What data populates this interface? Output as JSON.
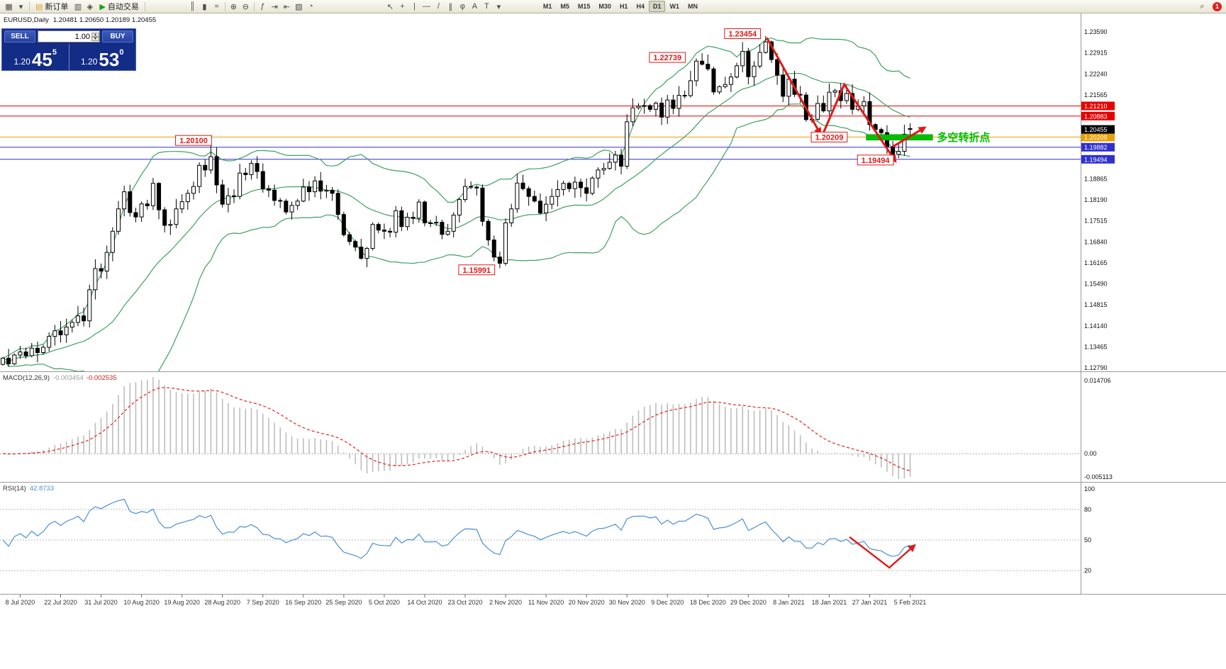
{
  "window": {
    "badge_count": "1"
  },
  "toolbar": {
    "search_glyph": "⌕",
    "items": [
      {
        "name": "new-chart-icon",
        "glyph": "▦"
      },
      {
        "name": "new-chart-dropdown-icon",
        "glyph": "▾"
      },
      {
        "kind": "sep"
      },
      {
        "name": "new-order-button",
        "label": "新订单",
        "glyph": "▤",
        "glyph_color": "#d8a62a"
      },
      {
        "name": "market-watch-icon",
        "glyph": "▥"
      },
      {
        "name": "navigator-icon",
        "glyph": "◈"
      },
      {
        "name": "autotrading-button",
        "label": "自动交易",
        "glyph": "▶",
        "glyph_color": "#17a317"
      },
      {
        "kind": "sep"
      },
      {
        "name": "bar-chart-icon",
        "glyph": "║"
      },
      {
        "name": "candlestick-icon",
        "glyph": "▮"
      },
      {
        "name": "line-chart-icon",
        "glyph": "≈"
      },
      {
        "kind": "sep"
      },
      {
        "name": "zoom-in-icon",
        "glyph": "⊕"
      },
      {
        "name": "zoom-out-icon",
        "glyph": "⊖"
      },
      {
        "kind": "sep"
      },
      {
        "name": "indicators-icon",
        "glyph": "ƒ"
      },
      {
        "name": "auto-scroll-icon",
        "glyph": "⇥"
      },
      {
        "name": "chart-shift-icon",
        "glyph": "⇤"
      },
      {
        "name": "templates-icon",
        "glyph": "▧"
      },
      {
        "name": "clock-icon",
        "glyph": "◔"
      },
      {
        "name": "cursor-icon",
        "glyph": "↖"
      },
      {
        "name": "crosshair-icon",
        "glyph": "+"
      },
      {
        "name": "vertical-line-icon",
        "glyph": "|"
      },
      {
        "name": "horizontal-line-icon",
        "glyph": "—"
      },
      {
        "name": "trendline-icon",
        "glyph": "/"
      },
      {
        "name": "channel-icon",
        "glyph": "∥"
      },
      {
        "name": "fibonacci-icon",
        "glyph": "φ"
      },
      {
        "name": "text-icon",
        "glyph": "A"
      },
      {
        "name": "label-icon",
        "glyph": "T"
      },
      {
        "name": "shapes-dropdown-icon",
        "glyph": "▾"
      }
    ],
    "timeframes": [
      {
        "label": "M1"
      },
      {
        "label": "M5"
      },
      {
        "label": "M15"
      },
      {
        "label": "M30"
      },
      {
        "label": "H1"
      },
      {
        "label": "H4"
      },
      {
        "label": "D1",
        "active": true
      },
      {
        "label": "W1"
      },
      {
        "label": "MN"
      }
    ]
  },
  "quote_panel": {
    "sell_label": "SELL",
    "buy_label": "BUY",
    "volume": "1.00",
    "bid": {
      "prefix": "1.20",
      "big": "45",
      "sup": "5"
    },
    "ask": {
      "prefix": "1.20",
      "big": "53",
      "sup": "0"
    }
  },
  "chart_data": {
    "type": "candlestick",
    "symbol_title": "EURUSD,Daily",
    "ohlc_text": "1.20481 1.20650 1.20189 1.20455",
    "price_axis": {
      "top_price": 1.2359,
      "bottom_price": 1.1279,
      "step": 0.00675,
      "count": 17,
      "visible_labels": [
        "1.23590",
        "1.22915",
        "1.22240",
        "1.21565",
        "1.18865",
        "1.18190",
        "1.17515",
        "1.16840",
        "1.16165",
        "1.15490",
        "1.14815",
        "1.14140",
        "1.13465",
        "1.12790"
      ]
    },
    "closes": [
      1.131,
      1.1292,
      1.132,
      1.133,
      1.1318,
      1.1342,
      1.1328,
      1.1345,
      1.138,
      1.1398,
      1.1385,
      1.141,
      1.1425,
      1.1446,
      1.143,
      1.153,
      1.1598,
      1.159,
      1.165,
      1.1718,
      1.179,
      1.1845,
      1.1778,
      1.1764,
      1.1806,
      1.18,
      1.1872,
      1.1787,
      1.1737,
      1.174,
      1.179,
      1.1813,
      1.184,
      1.1862,
      1.193,
      1.1915,
      1.1958,
      1.1867,
      1.1805,
      1.1832,
      1.183,
      1.1905,
      1.19,
      1.1936,
      1.191,
      1.1855,
      1.185,
      1.1817,
      1.1815,
      1.178,
      1.1801,
      1.1815,
      1.186,
      1.1845,
      1.188,
      1.1847,
      1.185,
      1.184,
      1.1772,
      1.1707,
      1.1685,
      1.1667,
      1.1631,
      1.1663,
      1.174,
      1.1722,
      1.1718,
      1.1715,
      1.1784,
      1.1733,
      1.1763,
      1.176,
      1.1812,
      1.1745,
      1.1745,
      1.1747,
      1.1708,
      1.1718,
      1.177,
      1.182,
      1.1862,
      1.186,
      1.1857,
      1.175,
      1.169,
      1.1635,
      1.1615,
      1.1745,
      1.179,
      1.1873,
      1.1855,
      1.183,
      1.1815,
      1.1777,
      1.1805,
      1.183,
      1.1852,
      1.1872,
      1.1855,
      1.1876,
      1.1858,
      1.184,
      1.1889,
      1.1915,
      1.192,
      1.194,
      1.1963,
      1.1927,
      1.207,
      1.2115,
      1.212,
      1.2122,
      1.211,
      1.213,
      1.2085,
      1.214,
      1.2113,
      1.2155,
      1.2154,
      1.2202,
      1.2265,
      1.2255,
      1.224,
      1.2166,
      1.2183,
      1.219,
      1.2214,
      1.225,
      1.2296,
      1.2215,
      1.2249,
      1.2293,
      1.2327,
      1.227,
      1.222,
      1.2152,
      1.2207,
      1.2158,
      1.2156,
      1.2077,
      1.2078,
      1.2129,
      1.2105,
      1.2165,
      1.217,
      1.2138,
      1.2161,
      1.211,
      1.2121,
      1.2135,
      1.2061,
      1.2045,
      1.2035,
      1.199,
      1.1965,
      1.1975,
      1.203,
      1.20455
    ],
    "candle_overrides": [
      {
        "i": 36,
        "high": 1.201
      },
      {
        "i": 86,
        "low": 1.15991
      },
      {
        "i": 120,
        "high": 1.22739
      },
      {
        "i": 132,
        "high": 1.23454
      },
      {
        "i": 154,
        "low": 1.19494
      },
      {
        "i": 157,
        "open": 1.20481,
        "high": 1.2065,
        "low": 1.20189,
        "close": 1.20455
      }
    ],
    "levels": [
      {
        "price": 1.2121,
        "label": "1.21210",
        "color": "#e80000"
      },
      {
        "price": 1.20883,
        "label": "1.20883",
        "color": "#e80000"
      },
      {
        "price": 1.20209,
        "label": "1.20209",
        "color": "#e8a000"
      },
      {
        "price": 1.19882,
        "label": "1.19882",
        "color": "#3030d0"
      },
      {
        "price": 1.19494,
        "label": "1.19494",
        "color": "#3030d0"
      }
    ],
    "current_price": {
      "price": 1.20455,
      "label": "1.20455",
      "color": "#000000"
    },
    "callouts": [
      {
        "text": "1.23454",
        "i": 128,
        "price": 1.23533
      },
      {
        "text": "1.22739",
        "i": 115,
        "price": 1.2277
      },
      {
        "text": "1.20100",
        "i": 33,
        "price": 1.201
      },
      {
        "text": "1.15991",
        "i": 82,
        "price": 1.1594
      },
      {
        "text": "1.20209",
        "i": 143,
        "price": 1.20209
      },
      {
        "text": "1.19494",
        "i": 151,
        "price": 1.1947
      }
    ],
    "arrows": [
      {
        "points": [
          [
            132.2,
            1.234
          ],
          [
            141.5,
            1.203
          ]
        ]
      },
      {
        "points": [
          [
            142.0,
            1.2035
          ],
          [
            145.6,
            1.219
          ],
          [
            154.5,
            1.1942
          ]
        ]
      },
      {
        "points": [
          [
            154.0,
            1.199
          ],
          [
            159.6,
            1.2052
          ]
        ]
      }
    ],
    "green_bar": {
      "from_i": 149.4,
      "to_i": 160.9,
      "price": 1.202,
      "label": "多空转折点"
    },
    "dates": [
      "8 Jul 2020",
      "22 Jul 2020",
      "31 Jul 2020",
      "10 Aug 2020",
      "19 Aug 2020",
      "28 Aug 2020",
      "7 Sep 2020",
      "16 Sep 2020",
      "25 Sep 2020",
      "5 Oct 2020",
      "14 Oct 2020",
      "23 Oct 2020",
      "2 Nov 2020",
      "11 Nov 2020",
      "20 Nov 2020",
      "30 Nov 2020",
      "9 Dec 2020",
      "18 Dec 2020",
      "29 Dec 2020",
      "8 Jan 2021",
      "18 Jan 2021",
      "27 Jan 2021",
      "5 Feb 2021"
    ],
    "date_tick_start": 3,
    "date_tick_step": 7,
    "macd": {
      "label": "MACD(12,26,9)",
      "value1": "-0.003454",
      "value2": "-0.002535",
      "scale_top": "0.014706",
      "scale_zero": "0.00",
      "scale_bottom": "-0.005113"
    },
    "rsi": {
      "label": "RSI(14)",
      "value": "42.8733",
      "levels": [
        {
          "value": 100,
          "label": "100",
          "dotted": false
        },
        {
          "value": 80,
          "label": "80",
          "dotted": true
        },
        {
          "value": 50,
          "label": "50",
          "dotted": true
        },
        {
          "value": 20,
          "label": "20",
          "dotted": true
        }
      ],
      "arrow_points": [
        [
          146.5,
          53
        ],
        [
          153.4,
          23
        ],
        [
          157.8,
          45
        ]
      ]
    },
    "colors": {
      "bull": "#ffffff",
      "bear": "#000000",
      "band": "#3fa05f",
      "rsi_line": "#4a8fd4",
      "macd_hist": "#b9b9b9",
      "macd_signal": "#e02020",
      "annotation_red": "#e01818",
      "annotation_green": "#00bf00"
    }
  }
}
